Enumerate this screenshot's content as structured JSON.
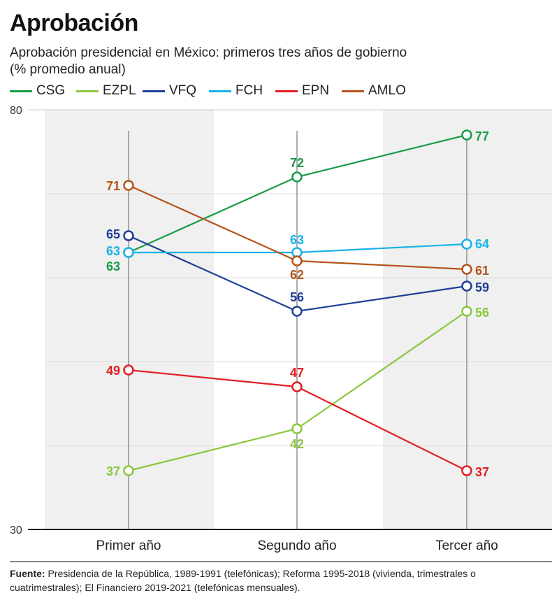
{
  "header": {
    "title": "Aprobación",
    "subtitle_line1": "Aprobación presidencial en México: primeros tres años de gobierno",
    "subtitle_line2": "(% promedio anual)"
  },
  "chart_data": {
    "type": "line",
    "categories": [
      "Primer año",
      "Segundo año",
      "Tercer año"
    ],
    "ylim": [
      30,
      80
    ],
    "yticks_labeled": [
      30,
      80
    ],
    "grid": true,
    "legend_placement": "top-left",
    "series": [
      {
        "name": "CSG",
        "color": "#1a9a48",
        "values": [
          63,
          72,
          77
        ]
      },
      {
        "name": "EZPL",
        "color": "#8cc63f",
        "values": [
          37,
          42,
          56
        ]
      },
      {
        "name": "VFQ",
        "color": "#1f3f97",
        "values": [
          65,
          56,
          59
        ]
      },
      {
        "name": "FCH",
        "color": "#1ab2e8",
        "values": [
          63,
          63,
          64
        ]
      },
      {
        "name": "EPN",
        "color": "#e31e24",
        "values": [
          49,
          47,
          37
        ]
      },
      {
        "name": "AMLO",
        "color": "#b5541b",
        "values": [
          71,
          62,
          61
        ]
      }
    ]
  },
  "footer": {
    "label": "Fuente:",
    "text": " Presidencia de la República, 1989-1991 (telefónicas); Reforma 1995-2018 (vivienda, trimestrales o cuatrimestrales); El Financiero 2019-2021 (telefónicas mensuales)."
  }
}
